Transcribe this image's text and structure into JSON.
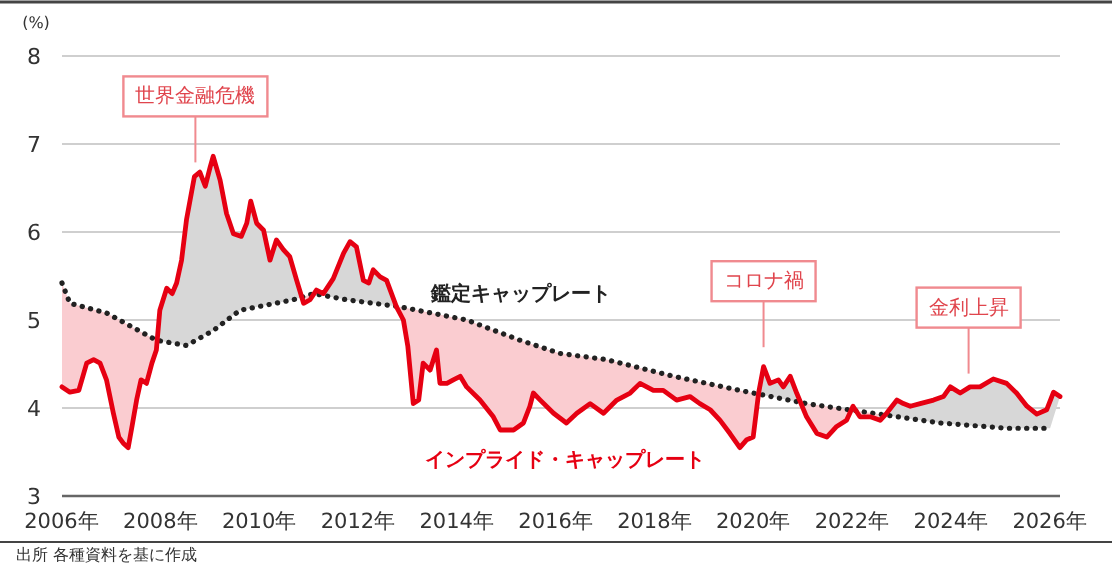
{
  "chart_data": {
    "type": "line",
    "ylabel": "(%)",
    "xlim": [
      2006,
      2026.2
    ],
    "xticks": [
      {
        "value": 2006,
        "label": "2006年"
      },
      {
        "value": 2008,
        "label": "2008年"
      },
      {
        "value": 2010,
        "label": "2010年"
      },
      {
        "value": 2012,
        "label": "2012年"
      },
      {
        "value": 2014,
        "label": "2014年"
      },
      {
        "value": 2016,
        "label": "2016年"
      },
      {
        "value": 2018,
        "label": "2018年"
      },
      {
        "value": 2020,
        "label": "2020年"
      },
      {
        "value": 2022,
        "label": "2022年"
      },
      {
        "value": 2024,
        "label": "2024年"
      },
      {
        "value": 2026,
        "label": "2026年"
      }
    ],
    "ylim": [
      3,
      8
    ],
    "yticks": [
      3,
      4,
      5,
      6,
      7,
      8
    ],
    "grid": "y",
    "legend": false,
    "marker": "none",
    "series": [
      {
        "name": "インプライド・キャップレート",
        "color": "#e60012",
        "line_style": "solid",
        "x": [
          2006.0,
          2006.16,
          2006.34,
          2006.5,
          2006.64,
          2006.77,
          2006.9,
          2007.04,
          2007.15,
          2007.24,
          2007.34,
          2007.42,
          2007.51,
          2007.6,
          2007.71,
          2007.82,
          2007.91,
          2007.98,
          2008.12,
          2008.23,
          2008.32,
          2008.42,
          2008.52,
          2008.68,
          2008.79,
          2008.9,
          2009.0,
          2009.06,
          2009.2,
          2009.33,
          2009.47,
          2009.63,
          2009.74,
          2009.82,
          2009.94,
          2010.08,
          2010.21,
          2010.34,
          2010.48,
          2010.61,
          2010.75,
          2010.89,
          2011.02,
          2011.15,
          2011.29,
          2011.49,
          2011.7,
          2011.83,
          2011.96,
          2012.1,
          2012.21,
          2012.3,
          2012.44,
          2012.57,
          2012.77,
          2012.91,
          2013.0,
          2013.11,
          2013.22,
          2013.31,
          2013.45,
          2013.58,
          2013.65,
          2013.79,
          2013.92,
          2014.06,
          2014.19,
          2014.46,
          2014.73,
          2014.87,
          2015.14,
          2015.34,
          2015.47,
          2015.54,
          2015.68,
          2015.95,
          2016.21,
          2016.42,
          2016.69,
          2016.96,
          2017.23,
          2017.5,
          2017.7,
          2017.97,
          2018.17,
          2018.44,
          2018.71,
          2018.91,
          2019.12,
          2019.32,
          2019.52,
          2019.72,
          2019.86,
          2019.99,
          2020.1,
          2020.2,
          2020.33,
          2020.5,
          2020.6,
          2020.74,
          2020.87,
          2021.07,
          2021.28,
          2021.48,
          2021.68,
          2021.88,
          2022.01,
          2022.15,
          2022.36,
          2022.56,
          2022.69,
          2022.9,
          2023.03,
          2023.17,
          2023.37,
          2023.64,
          2023.84,
          2023.98,
          2024.18,
          2024.38,
          2024.58,
          2024.85,
          2025.12,
          2025.32,
          2025.53,
          2025.73,
          2025.93,
          2026.07,
          2026.2
        ],
        "values": [
          4.24,
          4.18,
          4.2,
          4.51,
          4.55,
          4.51,
          4.32,
          3.94,
          3.67,
          3.6,
          3.55,
          3.8,
          4.09,
          4.32,
          4.28,
          4.51,
          4.66,
          5.11,
          5.36,
          5.3,
          5.42,
          5.68,
          6.14,
          6.63,
          6.68,
          6.52,
          6.74,
          6.86,
          6.59,
          6.21,
          5.98,
          5.95,
          6.1,
          6.35,
          6.1,
          6.02,
          5.68,
          5.91,
          5.8,
          5.72,
          5.45,
          5.19,
          5.23,
          5.34,
          5.3,
          5.47,
          5.76,
          5.89,
          5.83,
          5.45,
          5.42,
          5.57,
          5.49,
          5.45,
          5.15,
          5.0,
          4.7,
          4.05,
          4.09,
          4.51,
          4.43,
          4.66,
          4.28,
          4.28,
          4.32,
          4.36,
          4.24,
          4.09,
          3.9,
          3.75,
          3.75,
          3.83,
          4.02,
          4.17,
          4.09,
          3.94,
          3.83,
          3.94,
          4.05,
          3.94,
          4.09,
          4.17,
          4.28,
          4.2,
          4.2,
          4.09,
          4.13,
          4.05,
          3.98,
          3.86,
          3.71,
          3.55,
          3.64,
          3.67,
          4.17,
          4.47,
          4.28,
          4.32,
          4.24,
          4.36,
          4.17,
          3.9,
          3.71,
          3.67,
          3.79,
          3.86,
          4.02,
          3.9,
          3.9,
          3.86,
          3.94,
          4.09,
          4.05,
          4.02,
          4.05,
          4.09,
          4.13,
          4.24,
          4.17,
          4.24,
          4.24,
          4.33,
          4.28,
          4.17,
          4.02,
          3.93,
          3.98,
          4.18,
          4.13
        ]
      },
      {
        "name": "鑑定キャップレート",
        "color": "#222222",
        "line_style": "dotted",
        "x": [
          2006.0,
          2006.16,
          2006.9,
          2007.91,
          2008.52,
          2009.06,
          2009.6,
          2010.14,
          2010.68,
          2011.09,
          2011.76,
          2012.84,
          2014.19,
          2015.27,
          2016.08,
          2017.02,
          2018.38,
          2019.72,
          2021.07,
          2022.42,
          2023.77,
          2025.12,
          2026.0
        ],
        "values": [
          5.42,
          5.19,
          5.08,
          4.77,
          4.71,
          4.88,
          5.11,
          5.17,
          5.23,
          5.3,
          5.23,
          5.15,
          5.0,
          4.77,
          4.62,
          4.55,
          4.36,
          4.2,
          4.05,
          3.94,
          3.83,
          3.77,
          3.77
        ]
      }
    ],
    "annotations": [
      {
        "text": "世界金融危機",
        "x": 2008.7,
        "y": 6.7
      },
      {
        "text": "コロナ禍",
        "x": 2020.2,
        "y": 4.6
      },
      {
        "text": "金利上昇",
        "x": 2024.35,
        "y": 4.3
      },
      "出所 各種資料を基に作成"
    ]
  }
}
